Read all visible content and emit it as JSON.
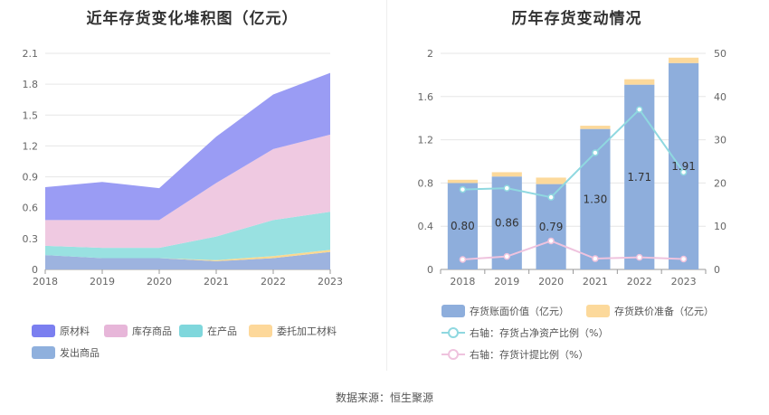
{
  "left": {
    "title": "近年存货变化堆积图（亿元）",
    "chart_data": {
      "type": "area",
      "stacked": true,
      "categories": [
        "2018",
        "2019",
        "2020",
        "2021",
        "2022",
        "2023"
      ],
      "ylim": [
        0,
        2.1
      ],
      "yticks": [
        "0",
        "0.3",
        "0.6",
        "0.9",
        "1.2",
        "1.5",
        "1.8",
        "2.1"
      ],
      "grid": true,
      "legend_position": "bottom",
      "series": [
        {
          "name": "发出商品",
          "color": "#9db3df",
          "values": [
            0.14,
            0.11,
            0.11,
            0.08,
            0.11,
            0.17
          ]
        },
        {
          "name": "委托加工材料",
          "color": "#fcd88f",
          "values": [
            0.0,
            0.0,
            0.0,
            0.01,
            0.02,
            0.02
          ]
        },
        {
          "name": "在产品",
          "color": "#99e1e1",
          "values": [
            0.09,
            0.1,
            0.1,
            0.23,
            0.35,
            0.37
          ]
        },
        {
          "name": "库存商品",
          "color": "#efc9e1",
          "values": [
            0.25,
            0.27,
            0.27,
            0.52,
            0.69,
            0.75
          ]
        },
        {
          "name": "原材料",
          "color": "#9a9cf4",
          "values": [
            0.32,
            0.37,
            0.31,
            0.45,
            0.53,
            0.6
          ]
        }
      ],
      "legend_order": [
        "原材料",
        "库存商品",
        "在产品",
        "委托加工材料",
        "发出商品"
      ],
      "legend_colors": [
        "#7b7ff0",
        "#e7b6d9",
        "#7fd7dc",
        "#fdd89a",
        "#8fb0dd"
      ]
    }
  },
  "right": {
    "title": "历年存货变动情况",
    "chart_data": {
      "type": "bar",
      "stacked": true,
      "categories": [
        "2018",
        "2019",
        "2020",
        "2021",
        "2022",
        "2023"
      ],
      "ylim": [
        0,
        2
      ],
      "yticks": [
        "0",
        "0.4",
        "0.8",
        "1.2",
        "1.6",
        "2"
      ],
      "y2lim": [
        0,
        50
      ],
      "y2ticks": [
        "0",
        "10",
        "20",
        "30",
        "40",
        "50"
      ],
      "grid": true,
      "legend_position": "bottom",
      "series": [
        {
          "name": "存货账面价值（亿元）",
          "axis": "left",
          "color": "#8eaedc",
          "values": [
            0.8,
            0.86,
            0.79,
            1.3,
            1.71,
            1.91
          ],
          "labels": [
            "0.80",
            "0.86",
            "0.79",
            "1.30",
            "1.71",
            "1.91"
          ]
        },
        {
          "name": "存货跌价准备（亿元）",
          "axis": "left",
          "color": "#fcd99b",
          "values": [
            0.03,
            0.04,
            0.06,
            0.03,
            0.05,
            0.05
          ]
        }
      ],
      "lines": [
        {
          "name": "右轴：存货占净资产比例（%）",
          "axis": "right",
          "color": "#8fd8e0",
          "values": [
            18.5,
            18.8,
            16.7,
            27.0,
            37.0,
            22.5
          ]
        },
        {
          "name": "右轴：存货计提比例（%）",
          "axis": "right",
          "color": "#efc3de",
          "values": [
            2.3,
            3.0,
            6.6,
            2.5,
            2.8,
            2.4
          ]
        }
      ]
    }
  },
  "source": "数据来源：恒生聚源"
}
